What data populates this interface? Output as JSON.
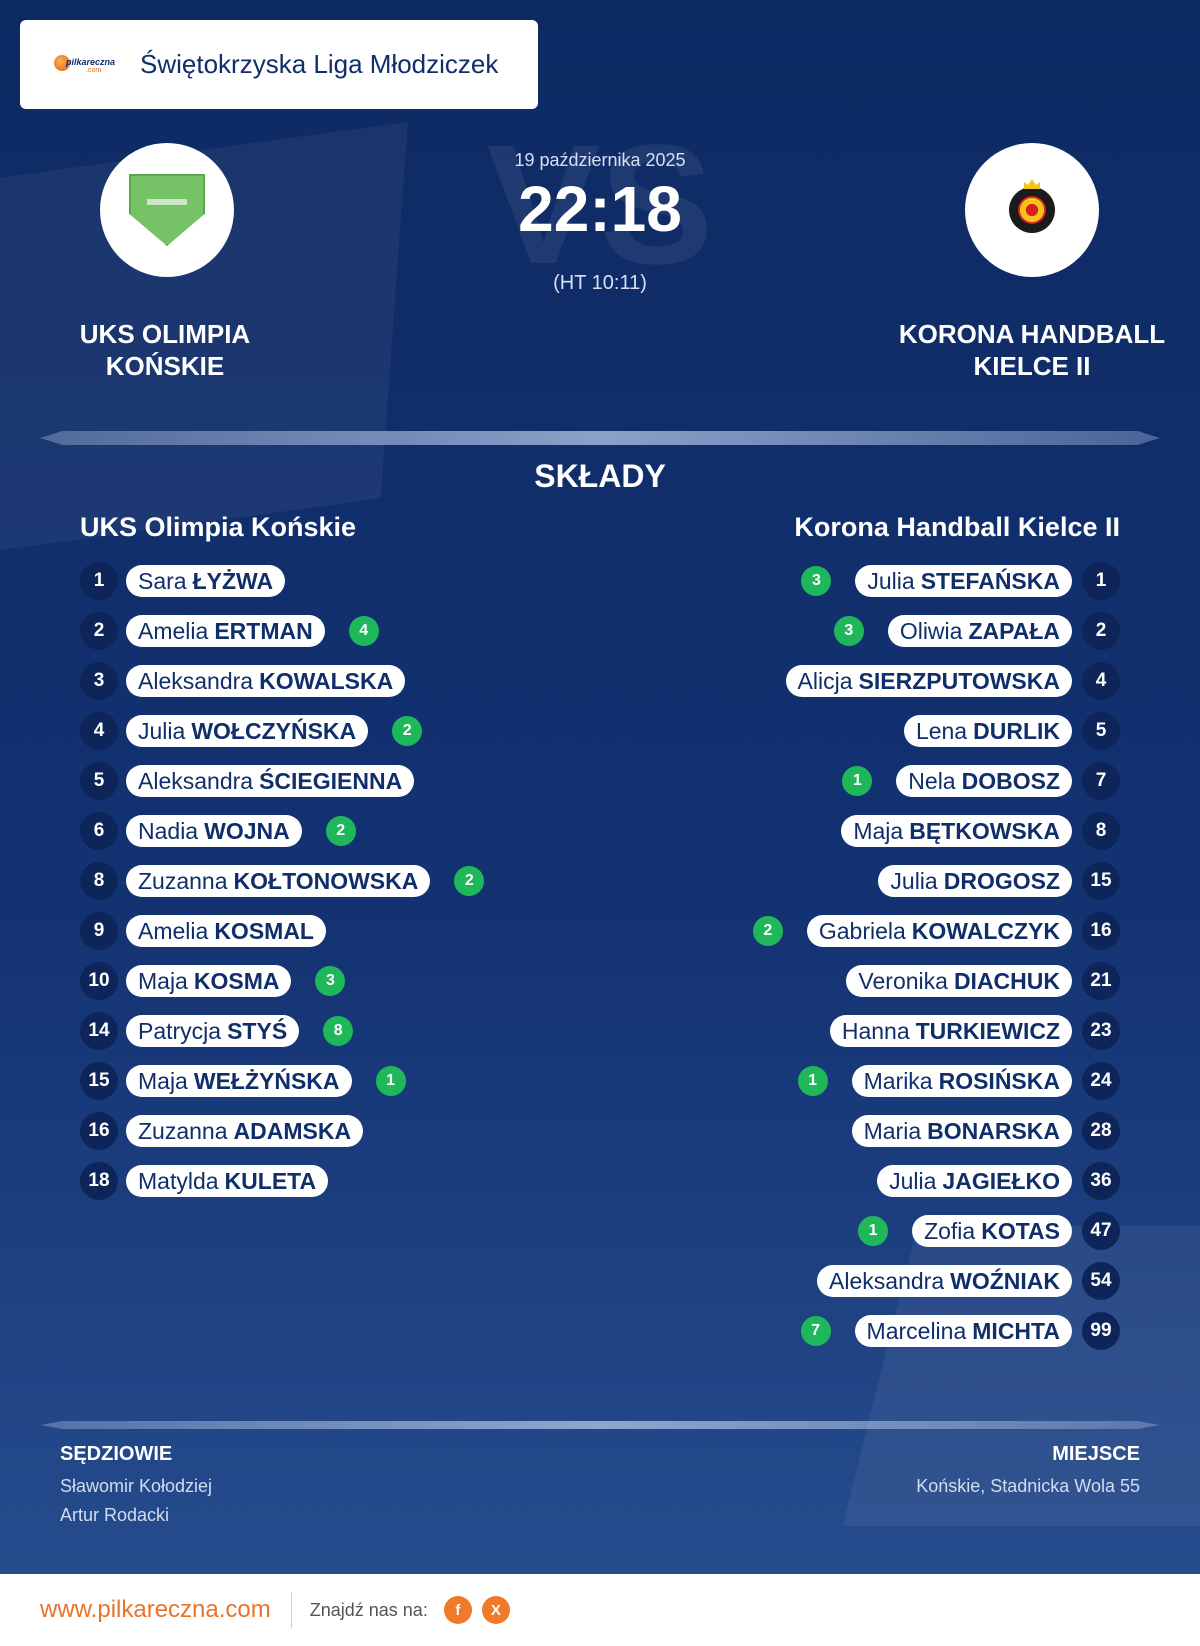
{
  "header": {
    "title": "Świętokrzyska Liga Młodziczek",
    "logo_text": "pilkareczna",
    "logo_sub": ".com"
  },
  "match": {
    "date": "19 października 2025",
    "score": "22:18",
    "halftime": "(HT 10:11)",
    "vs": "VS"
  },
  "home_team": {
    "name_line1": "UKS OLIMPIA",
    "name_line2": "KOŃSKIE",
    "lineup_title": "UKS Olimpia  Końskie",
    "players": [
      {
        "num": "1",
        "first": "Sara",
        "last": "ŁYŻWA",
        "goals": ""
      },
      {
        "num": "2",
        "first": "Amelia",
        "last": "ERTMAN",
        "goals": "4"
      },
      {
        "num": "3",
        "first": "Aleksandra",
        "last": "KOWALSKA",
        "goals": ""
      },
      {
        "num": "4",
        "first": "Julia",
        "last": "WOŁCZYŃSKA",
        "goals": "2"
      },
      {
        "num": "5",
        "first": "Aleksandra",
        "last": "ŚCIEGIENNA",
        "goals": ""
      },
      {
        "num": "6",
        "first": "Nadia",
        "last": "WOJNA",
        "goals": "2"
      },
      {
        "num": "8",
        "first": "Zuzanna",
        "last": "KOŁTONOWSKA",
        "goals": "2"
      },
      {
        "num": "9",
        "first": "Amelia",
        "last": "KOSMAL",
        "goals": ""
      },
      {
        "num": "10",
        "first": "Maja",
        "last": "KOSMA",
        "goals": "3"
      },
      {
        "num": "14",
        "first": "Patrycja",
        "last": "STYŚ",
        "goals": "8"
      },
      {
        "num": "15",
        "first": "Maja",
        "last": "WEŁŻYŃSKA",
        "goals": "1"
      },
      {
        "num": "16",
        "first": "Zuzanna",
        "last": "ADAMSKA",
        "goals": ""
      },
      {
        "num": "18",
        "first": "Matylda",
        "last": "KULETA",
        "goals": ""
      }
    ]
  },
  "away_team": {
    "name_line1": "KORONA HANDBALL",
    "name_line2": "KIELCE II",
    "lineup_title": "Korona Handball Kielce II",
    "players": [
      {
        "num": "1",
        "first": "Julia",
        "last": "STEFAŃSKA",
        "goals": "3"
      },
      {
        "num": "2",
        "first": "Oliwia",
        "last": "ZAPAŁA",
        "goals": "3"
      },
      {
        "num": "4",
        "first": "Alicja",
        "last": "SIERZPUTOWSKA",
        "goals": ""
      },
      {
        "num": "5",
        "first": "Lena",
        "last": "DURLIK",
        "goals": ""
      },
      {
        "num": "7",
        "first": "Nela",
        "last": "DOBOSZ",
        "goals": "1"
      },
      {
        "num": "8",
        "first": "Maja",
        "last": "BĘTKOWSKA",
        "goals": ""
      },
      {
        "num": "15",
        "first": "Julia",
        "last": "DROGOSZ",
        "goals": ""
      },
      {
        "num": "16",
        "first": "Gabriela",
        "last": "KOWALCZYK",
        "goals": "2"
      },
      {
        "num": "21",
        "first": "Veronika",
        "last": "DIACHUK",
        "goals": ""
      },
      {
        "num": "23",
        "first": "Hanna",
        "last": "TURKIEWICZ",
        "goals": ""
      },
      {
        "num": "24",
        "first": "Marika",
        "last": "ROSIŃSKA",
        "goals": "1"
      },
      {
        "num": "28",
        "first": "Maria",
        "last": "BONARSKA",
        "goals": ""
      },
      {
        "num": "36",
        "first": "Julia",
        "last": "JAGIEŁKO",
        "goals": ""
      },
      {
        "num": "47",
        "first": "Zofia",
        "last": "KOTAS",
        "goals": "1"
      },
      {
        "num": "54",
        "first": "Aleksandra",
        "last": "WOŹNIAK",
        "goals": ""
      },
      {
        "num": "99",
        "first": "Marcelina",
        "last": "MICHTA",
        "goals": "7"
      }
    ]
  },
  "sections": {
    "lineups": "SKŁADY",
    "referees_label": "SĘDZIOWIE",
    "venue_label": "MIEJSCE"
  },
  "referees": [
    "Sławomir Kołodziej",
    "Artur Rodacki"
  ],
  "venue": "Końskie, Stadnicka Wola 55",
  "footer": {
    "url": "www.pilkareczna.com",
    "find_us": "Znajdź nas na:",
    "facebook": "f",
    "x": "X"
  },
  "colors": {
    "background": "#0e2a63",
    "goal_badge": "#1eb85a",
    "accent": "#e8732a"
  }
}
